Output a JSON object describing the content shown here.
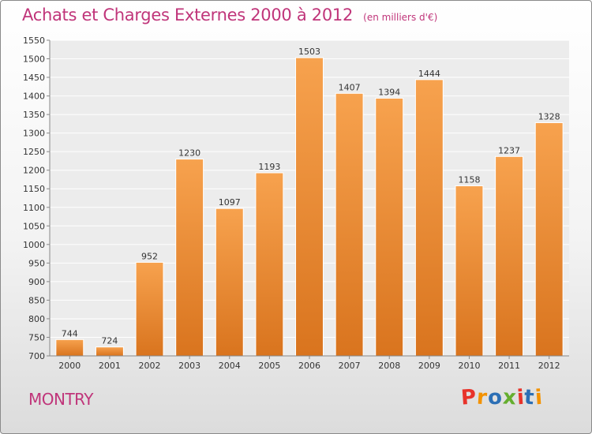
{
  "header": {
    "title": "Achats et Charges Externes 2000 à 2012",
    "subtitle": "(en milliers d'€)"
  },
  "footer": {
    "city": "MONTRY",
    "logo_text": "Proxiti"
  },
  "colors": {
    "title": "#c0357a",
    "bar_light": "#f7a24e",
    "bar_dark": "#d9741e",
    "logo_letters": [
      "#e8332a",
      "#f39200",
      "#2c6fb5",
      "#65ae2e",
      "#e8332a",
      "#2c6fb5",
      "#f39200"
    ]
  },
  "chart_data": {
    "type": "bar",
    "title": "Achats et Charges Externes 2000 à 2012",
    "subtitle": "(en milliers d'€)",
    "categories": [
      "2000",
      "2001",
      "2002",
      "2003",
      "2004",
      "2005",
      "2006",
      "2007",
      "2008",
      "2009",
      "2010",
      "2011",
      "2012"
    ],
    "values": [
      744,
      724,
      952,
      1230,
      1097,
      1193,
      1503,
      1407,
      1394,
      1444,
      1158,
      1237,
      1328
    ],
    "ylim": [
      700,
      1550
    ],
    "yticks": [
      700,
      750,
      800,
      850,
      900,
      950,
      1000,
      1050,
      1100,
      1150,
      1200,
      1250,
      1300,
      1350,
      1400,
      1450,
      1500,
      1550
    ],
    "grid": true,
    "data_labels": true
  }
}
